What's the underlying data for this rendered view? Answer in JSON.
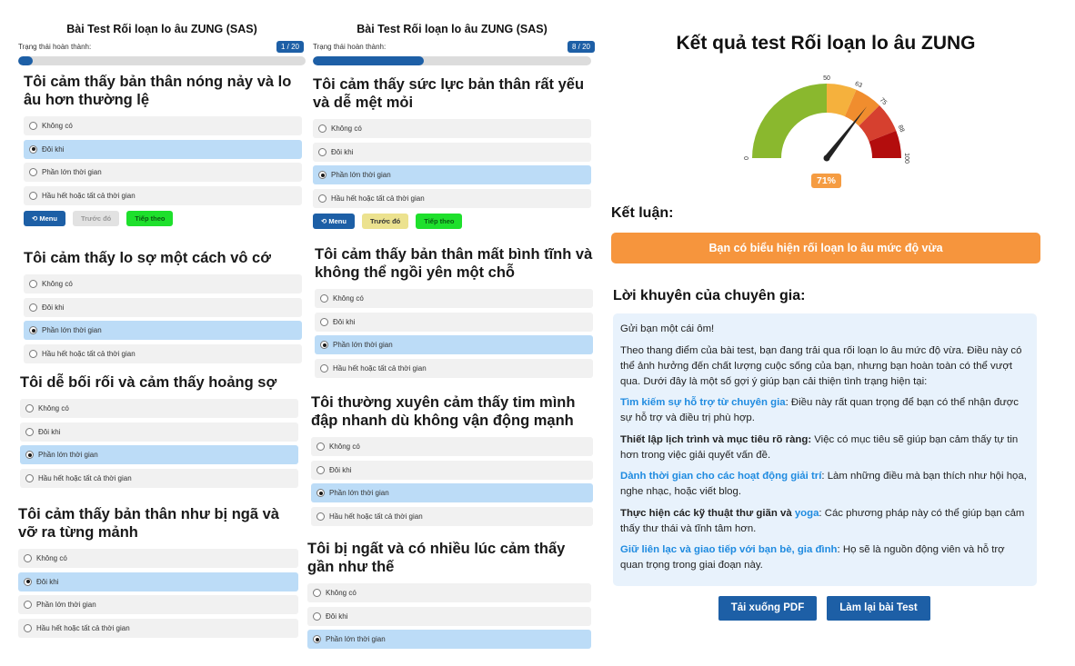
{
  "test_title": "Bài Test Rối loạn lo âu ZUNG (SAS)",
  "status_label": "Trạng thái hoàn thành:",
  "options": [
    "Không có",
    "Đôi khi",
    "Phần lớn thời gian",
    "Hầu hết hoặc tất cả thời gian"
  ],
  "buttons": {
    "menu": "Menu",
    "prev": "Trước đó",
    "next": "Tiếp theo"
  },
  "panel1": {
    "progress_label": "1 / 20",
    "progress": 0.05,
    "questions": [
      {
        "title": "Tôi cảm thấy bản thân nóng nảy và lo âu hơn thường lệ",
        "selected": 1
      },
      {
        "title": "Tôi cảm thấy lo sợ một cách vô cớ",
        "selected": 2
      },
      {
        "title": "Tôi dễ bối rối và cảm thấy hoảng sợ",
        "selected": 2
      },
      {
        "title": "Tôi cảm thấy bản thân như bị ngã và vỡ ra từng mảnh",
        "selected": 1
      }
    ]
  },
  "panel2": {
    "progress_label": "8 / 20",
    "progress": 0.4,
    "questions": [
      {
        "title": "Tôi cảm thấy sức lực bản thân rất yếu và dễ mệt mỏi",
        "selected": 2
      },
      {
        "title": "Tôi cảm thấy bản thân mất bình tĩnh và không thể ngồi yên một chỗ",
        "selected": 2
      },
      {
        "title": "Tôi thường xuyên cảm thấy tim mình đập nhanh dù không vận động mạnh",
        "selected": 2
      },
      {
        "title": "Tôi bị ngất và có nhiều lúc cảm thấy gần như thế",
        "selected": 2
      }
    ]
  },
  "result": {
    "title": "Kết quả test Rối loạn lo âu ZUNG",
    "gauge": {
      "min": 0,
      "max": 100,
      "value": 71,
      "tick_labels": [
        "0",
        "50",
        "63",
        "75",
        "88",
        "100"
      ],
      "bands": [
        {
          "from": 0,
          "to": 50,
          "color": "#8ab82e"
        },
        {
          "from": 50,
          "to": 63,
          "color": "#f5b13d"
        },
        {
          "from": 63,
          "to": 75,
          "color": "#f08d2e"
        },
        {
          "from": 75,
          "to": 88,
          "color": "#d6402f"
        },
        {
          "from": 88,
          "to": 100,
          "color": "#b30d0d"
        }
      ]
    },
    "percent_label": "71%",
    "conclusion_label": "Kết luận:",
    "conclusion": "Bạn có biểu hiện rối loạn lo âu mức độ vừa",
    "advice_label": "Lời khuyên của chuyên gia:",
    "advice": {
      "greeting": "Gửi bạn một cái ôm!",
      "intro": "Theo thang điểm của bài test, bạn đang trải qua rối loạn lo âu mức độ vừa. Điều này có thể ảnh hưởng đến chất lượng cuộc sống của bạn, nhưng bạn hoàn toàn có thể vượt qua. Dưới đây là một số gợi ý giúp bạn cải thiện tình trạng hiện tại:",
      "tip1_head": "Tìm kiếm sự hỗ trợ từ chuyên gia",
      "tip1_body": ": Điều này rất quan trọng để bạn có thể nhận được sự hỗ trợ và điều trị phù hợp.",
      "tip2_head": "Thiết lập lịch trình và mục tiêu rõ ràng:",
      "tip2_body": " Việc có mục tiêu sẽ giúp bạn cảm thấy tự tin hơn trong việc giải quyết vấn đề.",
      "tip3_head": "Dành thời gian cho các hoạt động giải trí",
      "tip3_body": ": Làm những điều mà bạn thích như hội họa, nghe nhạc, hoặc viết blog.",
      "tip4_head": "Thực hiện các kỹ thuật thư giãn và ",
      "tip4_link": "yoga",
      "tip4_body": ": Các phương pháp này có thể giúp bạn cảm thấy thư thái và tĩnh tâm hơn.",
      "tip5_head": "Giữ liên lạc và giao tiếp với bạn bè, gia đình",
      "tip5_body": ": Họ sẽ là nguồn động viên và hỗ trợ quan trọng trong giai đoạn này."
    },
    "download_button": "Tải xuống PDF",
    "retry_button": "Làm lại bài Test"
  }
}
